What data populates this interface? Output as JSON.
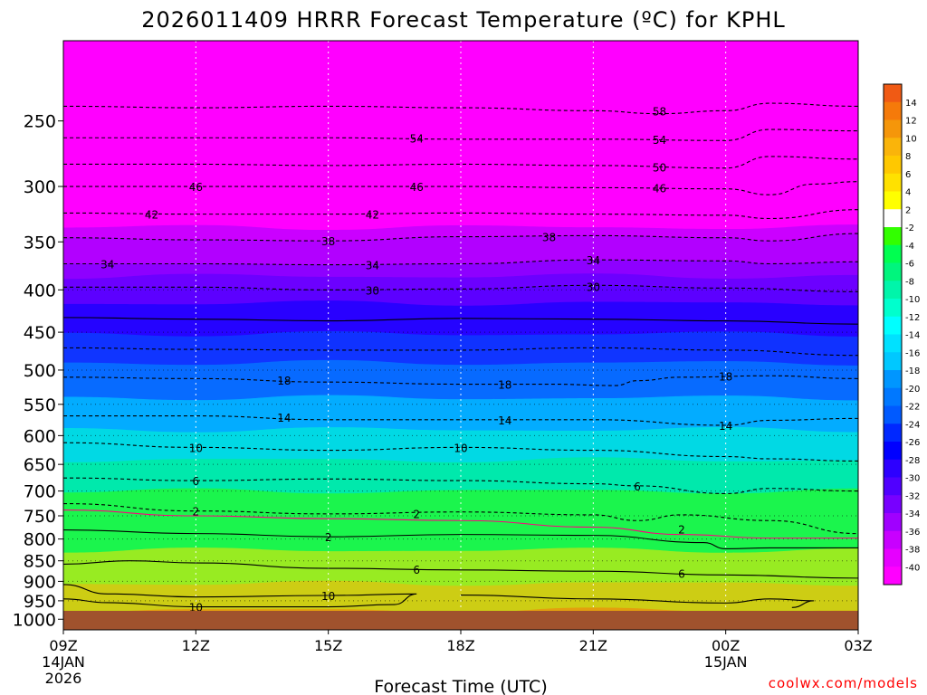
{
  "chart_data": {
    "type": "heatmap",
    "title": "2026011409 HRRR Forecast Temperature (ºC) for KPHL",
    "xlabel": "Forecast Time (UTC)",
    "ylabel": "",
    "credit": "coolwx.com/models",
    "x": {
      "range_hours": [
        0,
        18
      ],
      "ticks": [
        {
          "hour": 0,
          "label": "09Z",
          "sub1": "14JAN",
          "sub2": "2026"
        },
        {
          "hour": 3,
          "label": "12Z",
          "sub1": "",
          "sub2": ""
        },
        {
          "hour": 6,
          "label": "15Z",
          "sub1": "",
          "sub2": ""
        },
        {
          "hour": 9,
          "label": "18Z",
          "sub1": "",
          "sub2": ""
        },
        {
          "hour": 12,
          "label": "21Z",
          "sub1": "",
          "sub2": ""
        },
        {
          "hour": 15,
          "label": "00Z",
          "sub1": "15JAN",
          "sub2": ""
        },
        {
          "hour": 18,
          "label": "03Z",
          "sub1": "",
          "sub2": ""
        }
      ]
    },
    "y": {
      "unit": "hPa",
      "range": [
        1030,
        200
      ],
      "ticks": [
        250,
        300,
        350,
        400,
        450,
        500,
        550,
        600,
        650,
        700,
        750,
        800,
        850,
        900,
        950,
        1000
      ]
    },
    "colorbar": {
      "bands": [
        {
          "hi": 16,
          "color": "#f05a14"
        },
        {
          "hi": 14,
          "color": "#f57a0a"
        },
        {
          "hi": 12,
          "color": "#f5960a"
        },
        {
          "hi": 10,
          "color": "#fab40a"
        },
        {
          "hi": 8,
          "color": "#ffc800"
        },
        {
          "hi": 6,
          "color": "#ffe100"
        },
        {
          "hi": 4,
          "color": "#ffff00"
        },
        {
          "hi": 2,
          "color": "#ffffff"
        },
        {
          "hi": -2,
          "color": "#32ff00"
        },
        {
          "hi": -4,
          "color": "#00ff50"
        },
        {
          "hi": -6,
          "color": "#00f57d"
        },
        {
          "hi": -8,
          "color": "#00f5aa"
        },
        {
          "hi": -10,
          "color": "#00ffcd"
        },
        {
          "hi": -12,
          "color": "#00ffff"
        },
        {
          "hi": -14,
          "color": "#00e1ff"
        },
        {
          "hi": -16,
          "color": "#00c8ff"
        },
        {
          "hi": -18,
          "color": "#0096ff"
        },
        {
          "hi": -20,
          "color": "#0078ff"
        },
        {
          "hi": -22,
          "color": "#005aff"
        },
        {
          "hi": -24,
          "color": "#0028ff"
        },
        {
          "hi": -26,
          "color": "#0000ff"
        },
        {
          "hi": -28,
          "color": "#2d00ff"
        },
        {
          "hi": -30,
          "color": "#5000ff"
        },
        {
          "hi": -32,
          "color": "#7800ff"
        },
        {
          "hi": -34,
          "color": "#a000ff"
        },
        {
          "hi": -36,
          "color": "#c800ff"
        },
        {
          "hi": -38,
          "color": "#e600ff"
        },
        {
          "hi": -40,
          "color": "#ff00ff"
        }
      ],
      "labels": [
        "14",
        "12",
        "10",
        "8",
        "6",
        "4",
        "2",
        "-2",
        "-4",
        "-6",
        "-8",
        "-10",
        "-12",
        "-14",
        "-16",
        "-18",
        "-20",
        "-22",
        "-24",
        "-26",
        "-28",
        "-30",
        "-32",
        "-34",
        "-36",
        "-38",
        "-40"
      ]
    },
    "isotherms": [
      {
        "temp": -58,
        "label": "58",
        "dashed": true,
        "points": [
          [
            0,
            240
          ],
          [
            3,
            241
          ],
          [
            6,
            240
          ],
          [
            9,
            241
          ],
          [
            12,
            243
          ],
          [
            13.5,
            245
          ],
          [
            15,
            243
          ],
          [
            16,
            238
          ],
          [
            18,
            240
          ]
        ]
      },
      {
        "temp": -54,
        "label": "54",
        "dashed": true,
        "points": [
          [
            0,
            262
          ],
          [
            3,
            262
          ],
          [
            6,
            262
          ],
          [
            9,
            263
          ],
          [
            12,
            263
          ],
          [
            15,
            264
          ],
          [
            16,
            256
          ],
          [
            18,
            257
          ]
        ]
      },
      {
        "temp": -50,
        "label": "50",
        "dashed": true,
        "points": [
          [
            0,
            282
          ],
          [
            3,
            282
          ],
          [
            6,
            283
          ],
          [
            9,
            282
          ],
          [
            12,
            283
          ],
          [
            15,
            285
          ],
          [
            16,
            276
          ],
          [
            18,
            278
          ]
        ]
      },
      {
        "temp": -46,
        "label": "46",
        "dashed": true,
        "points": [
          [
            0,
            300
          ],
          [
            3,
            300
          ],
          [
            6,
            300
          ],
          [
            9,
            300
          ],
          [
            12,
            301
          ],
          [
            15,
            302
          ],
          [
            16,
            307
          ],
          [
            17,
            298
          ],
          [
            18,
            296
          ]
        ]
      },
      {
        "temp": -42,
        "label": "42",
        "dashed": true,
        "points": [
          [
            0,
            323
          ],
          [
            3,
            324
          ],
          [
            6,
            324
          ],
          [
            9,
            323
          ],
          [
            12,
            324
          ],
          [
            15,
            325
          ],
          [
            16,
            328
          ],
          [
            18,
            320
          ]
        ]
      },
      {
        "temp": -38,
        "label": "38",
        "dashed": true,
        "points": [
          [
            0,
            346
          ],
          [
            3,
            348
          ],
          [
            6,
            349
          ],
          [
            9,
            345
          ],
          [
            12,
            344
          ],
          [
            15,
            346
          ],
          [
            16,
            349
          ],
          [
            18,
            342
          ]
        ]
      },
      {
        "temp": -34,
        "label": "34",
        "dashed": true,
        "points": [
          [
            0,
            372
          ],
          [
            3,
            372
          ],
          [
            6,
            373
          ],
          [
            9,
            372
          ],
          [
            12,
            368
          ],
          [
            15,
            369
          ],
          [
            16,
            372
          ],
          [
            18,
            370
          ]
        ]
      },
      {
        "temp": -30,
        "label": "30",
        "dashed": true,
        "points": [
          [
            0,
            397
          ],
          [
            3,
            397
          ],
          [
            6,
            400
          ],
          [
            9,
            399
          ],
          [
            12,
            395
          ],
          [
            15,
            398
          ],
          [
            18,
            402
          ]
        ]
      },
      {
        "temp": -26,
        "label": "",
        "dashed": false,
        "points": [
          [
            0,
            432
          ],
          [
            3,
            434
          ],
          [
            6,
            436
          ],
          [
            9,
            433
          ],
          [
            12,
            434
          ],
          [
            15,
            436
          ],
          [
            18,
            440
          ]
        ]
      },
      {
        "temp": -22,
        "label": "",
        "dashed": true,
        "points": [
          [
            0,
            470
          ],
          [
            3,
            472
          ],
          [
            6,
            473
          ],
          [
            9,
            473
          ],
          [
            12,
            470
          ],
          [
            15,
            473
          ],
          [
            18,
            480
          ]
        ]
      },
      {
        "temp": -18,
        "label": "18",
        "dashed": true,
        "points": [
          [
            0,
            510
          ],
          [
            3,
            512
          ],
          [
            6,
            517
          ],
          [
            9,
            520
          ],
          [
            11,
            520
          ],
          [
            12.5,
            522
          ],
          [
            13,
            515
          ],
          [
            14,
            510
          ],
          [
            16,
            508
          ],
          [
            18,
            512
          ]
        ]
      },
      {
        "temp": -14,
        "label": "14",
        "dashed": true,
        "points": [
          [
            0,
            568
          ],
          [
            3,
            568
          ],
          [
            6,
            574
          ],
          [
            9,
            574
          ],
          [
            12,
            574
          ],
          [
            15,
            583
          ],
          [
            16,
            575
          ],
          [
            18,
            572
          ]
        ]
      },
      {
        "temp": -10,
        "label": "10",
        "dashed": true,
        "points": [
          [
            0,
            612
          ],
          [
            3,
            620
          ],
          [
            6,
            625
          ],
          [
            9,
            620
          ],
          [
            12,
            625
          ],
          [
            15,
            636
          ],
          [
            16,
            640
          ],
          [
            18,
            644
          ]
        ]
      },
      {
        "temp": -6,
        "label": "6",
        "dashed": true,
        "points": [
          [
            0,
            675
          ],
          [
            3,
            680
          ],
          [
            6,
            677
          ],
          [
            9,
            680
          ],
          [
            12,
            686
          ],
          [
            13,
            690
          ],
          [
            15,
            705
          ],
          [
            16,
            695
          ],
          [
            18,
            700
          ]
        ]
      },
      {
        "temp": -2,
        "label": "2",
        "dashed": true,
        "points": [
          [
            0,
            725
          ],
          [
            3,
            740
          ],
          [
            6,
            746
          ],
          [
            9,
            742
          ],
          [
            12,
            748
          ],
          [
            13,
            760
          ],
          [
            14,
            748
          ],
          [
            16,
            760
          ],
          [
            18,
            788
          ]
        ]
      },
      {
        "temp": 0,
        "label": "",
        "dashed": false,
        "color": "#ff007f",
        "points": [
          [
            0,
            738
          ],
          [
            3,
            750
          ],
          [
            6,
            756
          ],
          [
            9,
            760
          ],
          [
            12,
            774
          ],
          [
            14,
            790
          ],
          [
            16,
            798
          ],
          [
            18,
            798
          ]
        ]
      },
      {
        "temp": 2,
        "label": "2",
        "dashed": false,
        "points": [
          [
            0,
            780
          ],
          [
            3,
            788
          ],
          [
            6,
            795
          ],
          [
            9,
            790
          ],
          [
            12,
            792
          ],
          [
            14.5,
            808
          ],
          [
            15,
            822
          ],
          [
            16,
            820
          ],
          [
            18,
            820
          ]
        ]
      },
      {
        "temp": 6,
        "label": "6",
        "dashed": false,
        "points": [
          [
            0,
            858
          ],
          [
            1.5,
            850
          ],
          [
            3,
            855
          ],
          [
            6,
            868
          ],
          [
            9,
            872
          ],
          [
            12,
            875
          ],
          [
            15,
            884
          ],
          [
            18,
            892
          ]
        ]
      },
      {
        "temp": 10,
        "label": "10",
        "dashed": false,
        "points": [
          [
            0,
            908
          ],
          [
            1,
            932
          ],
          [
            3,
            940
          ],
          [
            6,
            936
          ],
          [
            8,
            932
          ],
          [
            7.5,
            960
          ],
          [
            6,
            966
          ],
          [
            3,
            966
          ],
          [
            1,
            955
          ],
          [
            0,
            945
          ]
        ]
      },
      {
        "temp": 10.5,
        "label": "",
        "dashed": false,
        "points": [
          [
            9,
            935
          ],
          [
            12,
            945
          ],
          [
            15,
            956
          ],
          [
            16,
            945
          ],
          [
            17,
            950
          ],
          [
            16.5,
            968
          ]
        ]
      }
    ],
    "label_positions": [
      {
        "text": "58",
        "hour": 13.5,
        "p": 243
      },
      {
        "text": "54",
        "hour": 8,
        "p": 262
      },
      {
        "text": "54",
        "hour": 13.5,
        "p": 263
      },
      {
        "text": "50",
        "hour": 13.5,
        "p": 284
      },
      {
        "text": "46",
        "hour": 3,
        "p": 300
      },
      {
        "text": "46",
        "hour": 8,
        "p": 300
      },
      {
        "text": "46",
        "hour": 13.5,
        "p": 301
      },
      {
        "text": "42",
        "hour": 2,
        "p": 324
      },
      {
        "text": "42",
        "hour": 7,
        "p": 324
      },
      {
        "text": "38",
        "hour": 6,
        "p": 349
      },
      {
        "text": "38",
        "hour": 11,
        "p": 345
      },
      {
        "text": "34",
        "hour": 1,
        "p": 372
      },
      {
        "text": "34",
        "hour": 7,
        "p": 373
      },
      {
        "text": "34",
        "hour": 12,
        "p": 368
      },
      {
        "text": "30",
        "hour": 7,
        "p": 400
      },
      {
        "text": "30",
        "hour": 12,
        "p": 396
      },
      {
        "text": "18",
        "hour": 5,
        "p": 514
      },
      {
        "text": "18",
        "hour": 10,
        "p": 520
      },
      {
        "text": "18",
        "hour": 15,
        "p": 508
      },
      {
        "text": "14",
        "hour": 5,
        "p": 570
      },
      {
        "text": "14",
        "hour": 10,
        "p": 574
      },
      {
        "text": "14",
        "hour": 15,
        "p": 583
      },
      {
        "text": "10",
        "hour": 3,
        "p": 620
      },
      {
        "text": "10",
        "hour": 9,
        "p": 620
      },
      {
        "text": "6",
        "hour": 3,
        "p": 680
      },
      {
        "text": "6",
        "hour": 13,
        "p": 690
      },
      {
        "text": "2",
        "hour": 3,
        "p": 740
      },
      {
        "text": "2",
        "hour": 8,
        "p": 745
      },
      {
        "text": "2",
        "hour": 14,
        "p": 778
      },
      {
        "text": "2",
        "hour": 6,
        "p": 795
      },
      {
        "text": "6",
        "hour": 8,
        "p": 870
      },
      {
        "text": "6",
        "hour": 14,
        "p": 880
      },
      {
        "text": "10",
        "hour": 3,
        "p": 966
      },
      {
        "text": "10",
        "hour": 6,
        "p": 936
      }
    ]
  },
  "colors": {
    "ground": "#a0522d",
    "text": "#000000",
    "credit": "#ff0000",
    "grid": "#c8c8c8"
  }
}
